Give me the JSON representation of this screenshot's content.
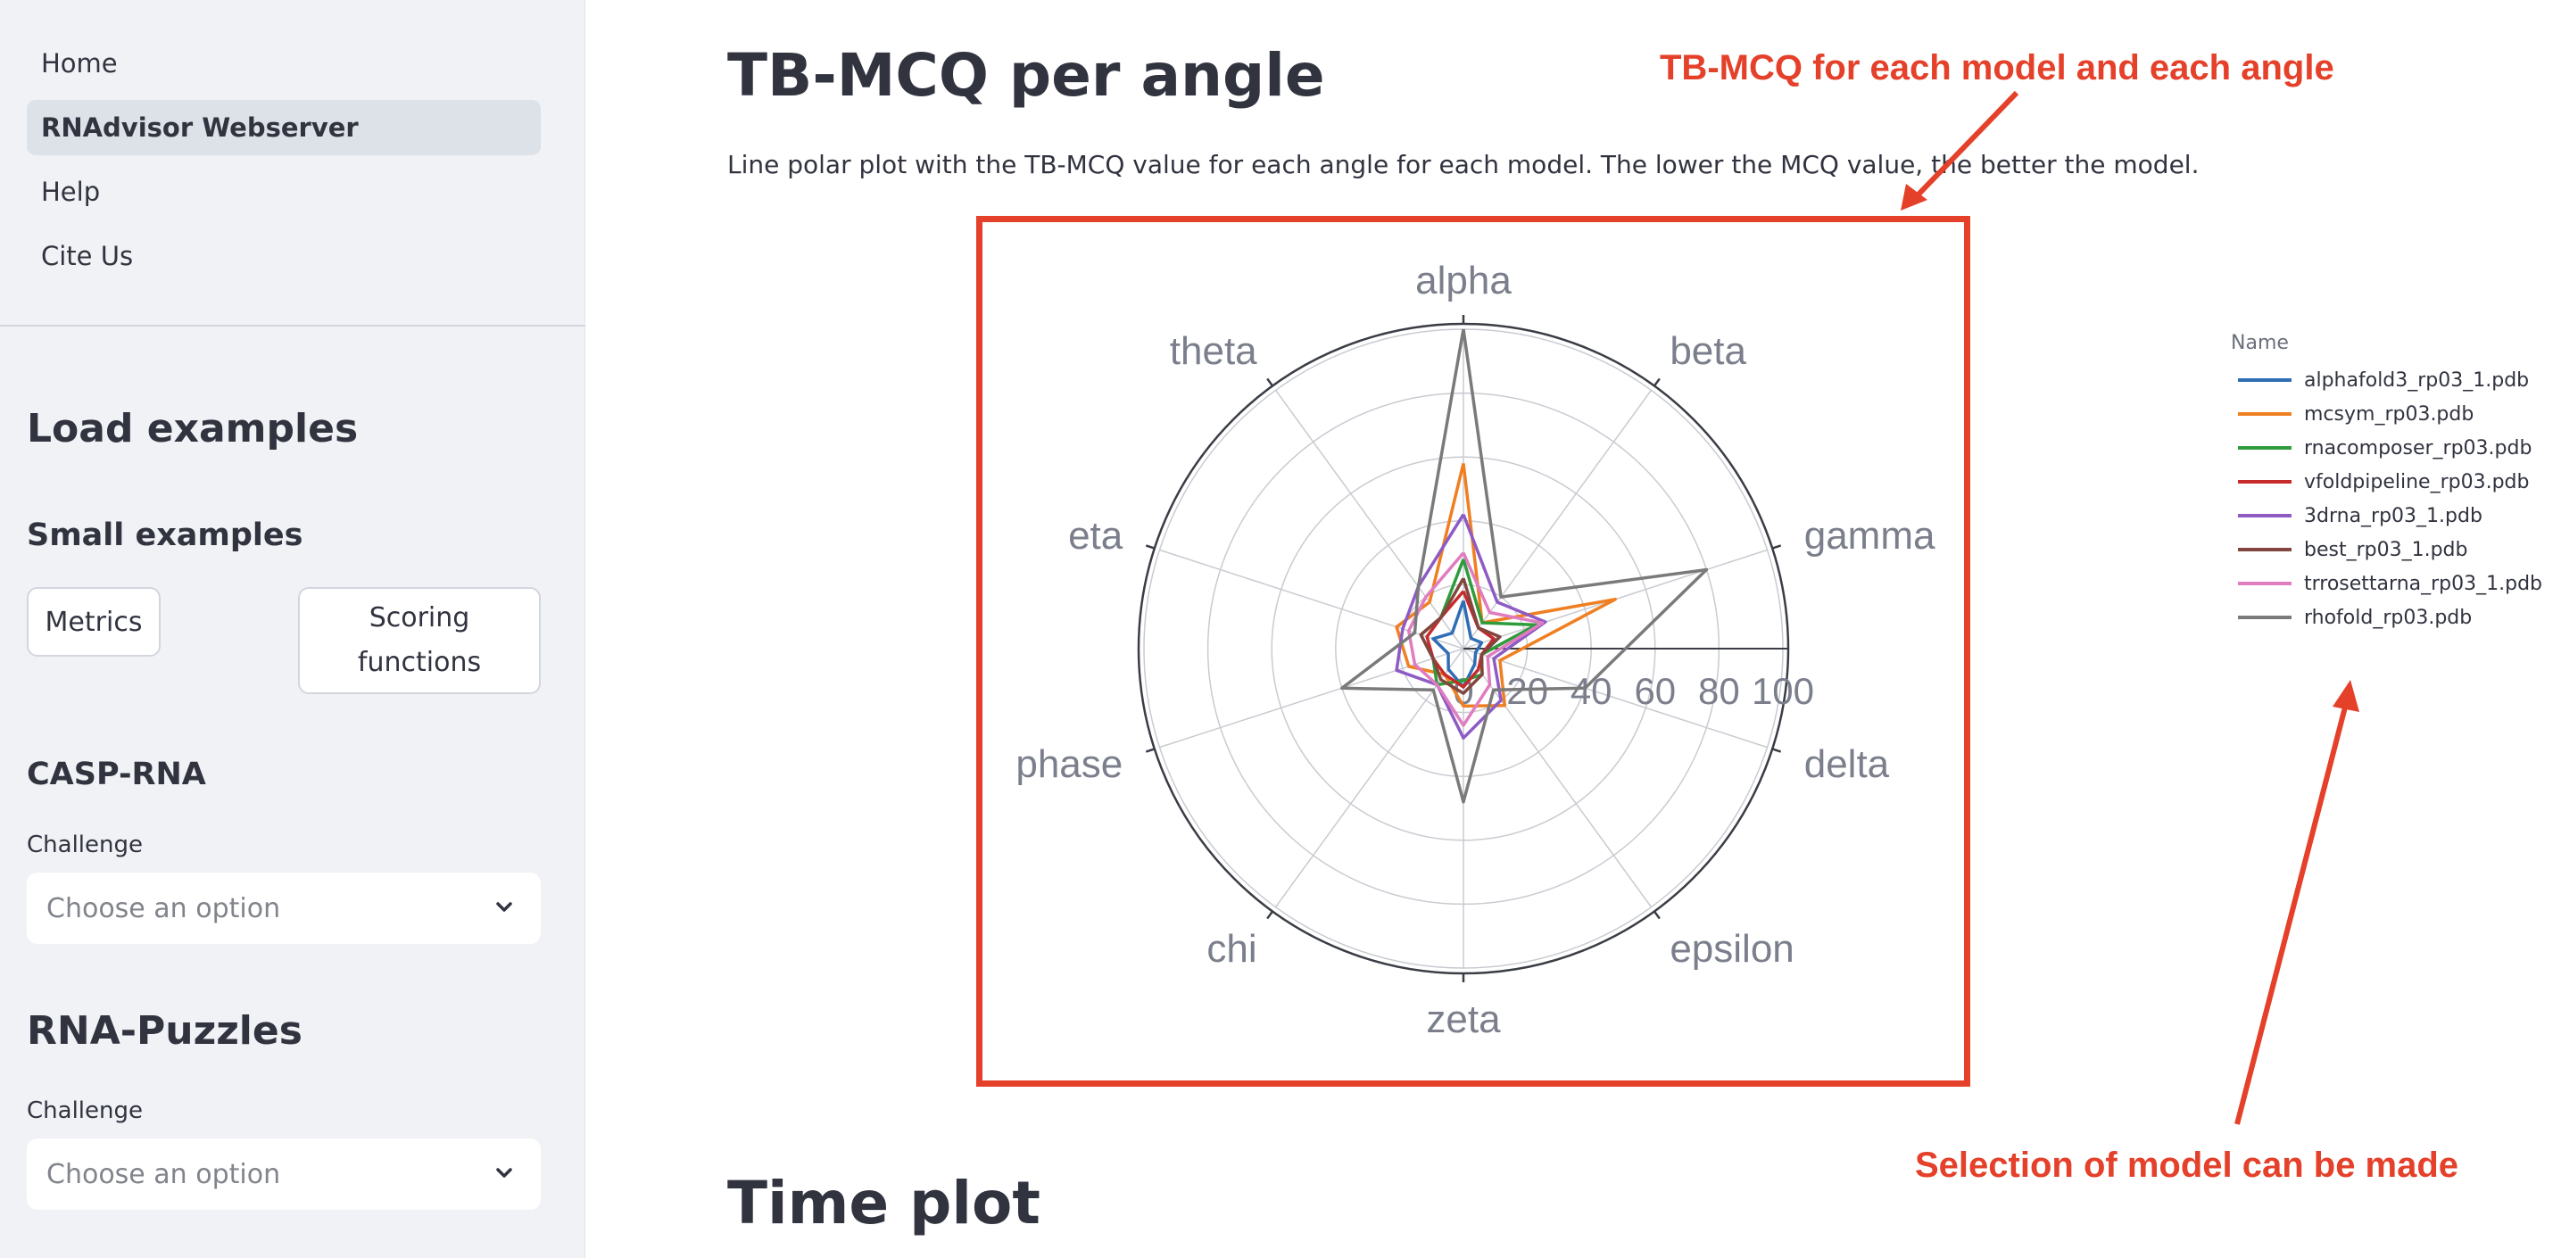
{
  "sidebar": {
    "nav": [
      {
        "label": "Home",
        "active": false
      },
      {
        "label": "RNAdvisor Webserver",
        "active": true
      },
      {
        "label": "Help",
        "active": false
      },
      {
        "label": "Cite Us",
        "active": false
      }
    ],
    "load_examples": "Load examples",
    "small_examples": "Small examples",
    "metrics_button": "Metrics",
    "scoring_button": "Scoring functions",
    "casp_title": "CASP-RNA",
    "casp_label": "Challenge",
    "casp_placeholder": "Choose an option",
    "rnapuzzles_title": "RNA-Puzzles",
    "rnapuzzles_label": "Challenge",
    "rnapuzzles_placeholder": "Choose an option"
  },
  "main": {
    "title": "TB-MCQ per angle",
    "description": "Line polar plot with the TB-MCQ value for each angle for each model. The lower the MCQ value, the better the model.",
    "next_title": "Time plot"
  },
  "annotations": {
    "top": "TB-MCQ for each model and each angle",
    "bottom": "Selection of model can be made"
  },
  "legend": {
    "title": "Name"
  },
  "chart_data": {
    "type": "line",
    "polar": true,
    "angles": [
      "alpha",
      "beta",
      "gamma",
      "delta",
      "epsilon",
      "zeta",
      "chi",
      "phase",
      "eta",
      "theta"
    ],
    "radial_ticks": [
      "0",
      "20",
      "40",
      "60",
      "80",
      "100"
    ],
    "radial_range": [
      0,
      100
    ],
    "legend_title": "Name",
    "legend_position": "right",
    "series": [
      {
        "name": "alphafold3_rp03_1.pdb",
        "color": "#2f6db5",
        "values": [
          15,
          4,
          6,
          4,
          6,
          12,
          8,
          5,
          10,
          6
        ]
      },
      {
        "name": "mcsym_rp03.pdb",
        "color": "#f07f22",
        "values": [
          58,
          10,
          50,
          12,
          22,
          18,
          10,
          18,
          22,
          18
        ]
      },
      {
        "name": "rnacomposer_rp03.pdb",
        "color": "#2e9c3a",
        "values": [
          28,
          10,
          24,
          6,
          10,
          10,
          14,
          10,
          14,
          12
        ]
      },
      {
        "name": "vfoldpipeline_rp03.pdb",
        "color": "#c62b2b",
        "values": [
          18,
          8,
          10,
          6,
          8,
          12,
          10,
          10,
          12,
          12
        ]
      },
      {
        "name": "3drna_rp03_1.pdb",
        "color": "#8e5bc4",
        "values": [
          42,
          18,
          27,
          10,
          20,
          28,
          14,
          22,
          20,
          24
        ]
      },
      {
        "name": "best_rp03_1.pdb",
        "color": "#83463e",
        "values": [
          22,
          8,
          12,
          6,
          10,
          14,
          12,
          10,
          14,
          12
        ]
      },
      {
        "name": "trrosettarna_rp03_1.pdb",
        "color": "#e07cc0",
        "values": [
          30,
          14,
          26,
          8,
          14,
          24,
          14,
          16,
          18,
          20
        ]
      },
      {
        "name": "rhofold_rp03.pdb",
        "color": "#7a7a7a",
        "values": [
          100,
          20,
          80,
          40,
          16,
          48,
          16,
          40,
          16,
          24
        ]
      }
    ]
  }
}
